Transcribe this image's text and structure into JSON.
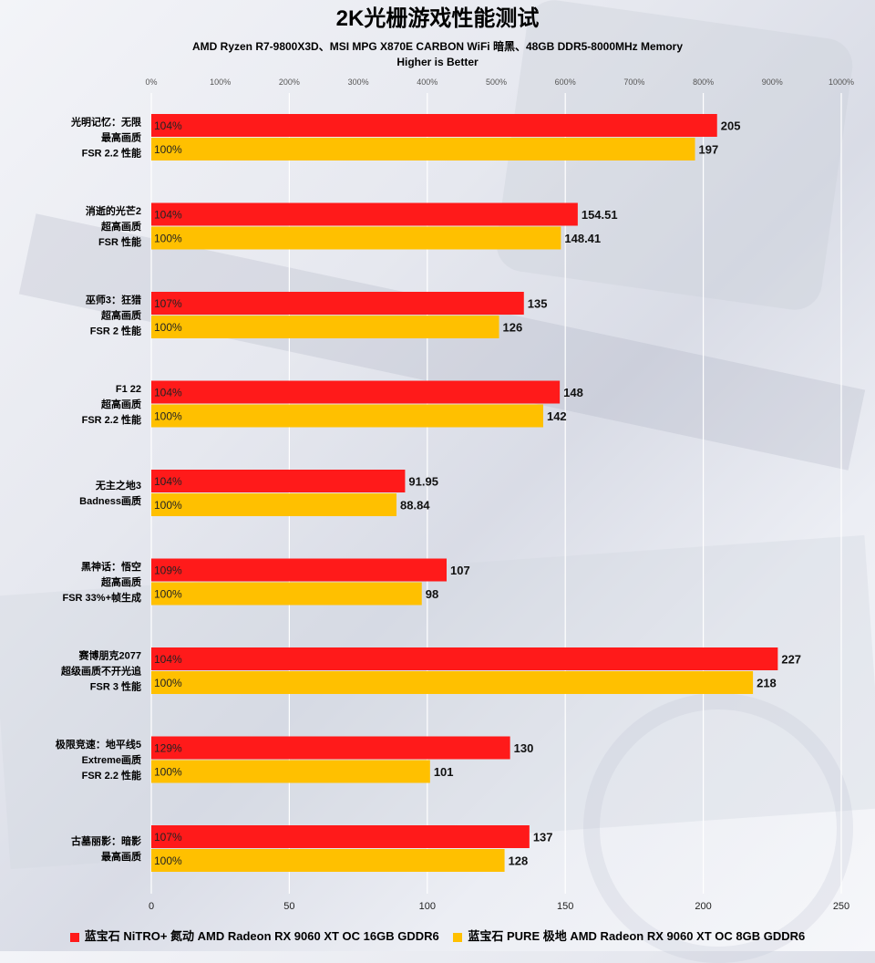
{
  "title": "2K光栅游戏性能测试",
  "subtitle": "AMD Ryzen R7-9800X3D、MSI MPG X870E CARBON WiFi 暗黑、48GB DDR5-8000MHz Memory",
  "note": "Higher is Better",
  "colors": {
    "series1": "#ff1a1a",
    "series2": "#ffc000",
    "grid": "#ffffff"
  },
  "chart_data": {
    "type": "bar",
    "orientation": "horizontal",
    "categories": [
      [
        "光明记忆：无限",
        "最高画质",
        "FSR 2.2 性能"
      ],
      [
        "消逝的光芒2",
        "超高画质",
        "FSR 性能"
      ],
      [
        "巫师3：狂猎",
        "超高画质",
        "FSR 2 性能"
      ],
      [
        "F1 22",
        "超高画质",
        "FSR 2.2 性能"
      ],
      [
        "无主之地3",
        "Badness画质"
      ],
      [
        "黑神话：悟空",
        "超高画质",
        "FSR 33%+帧生成"
      ],
      [
        "赛博朋克2077",
        "超级画质不开光追",
        "FSR 3 性能"
      ],
      [
        "极限竞速：地平线5",
        "Extreme画质",
        "FSR 2.2 性能"
      ],
      [
        "古墓丽影：暗影",
        "最高画质"
      ]
    ],
    "series": [
      {
        "name": "蓝宝石 NiTRO+ 氮动 AMD Radeon RX 9060 XT OC 16GB GDDR6",
        "values": [
          205,
          154.51,
          135,
          148,
          91.95,
          107,
          227,
          130,
          137
        ],
        "value_labels": [
          "205",
          "154.51",
          "135",
          "148",
          "91.95",
          "107",
          "227",
          "130",
          "137"
        ],
        "pct_labels": [
          "104%",
          "104%",
          "107%",
          "104%",
          "104%",
          "109%",
          "104%",
          "129%",
          "107%"
        ]
      },
      {
        "name": "蓝宝石 PURE 极地 AMD Radeon RX 9060 XT OC 8GB GDDR6",
        "values": [
          197,
          148.41,
          126,
          142,
          88.84,
          98,
          218,
          101,
          128
        ],
        "value_labels": [
          "197",
          "148.41",
          "126",
          "142",
          "88.84",
          "98",
          "218",
          "101",
          "128"
        ],
        "pct_labels": [
          "100%",
          "100%",
          "100%",
          "100%",
          "100%",
          "100%",
          "100%",
          "100%",
          "100%"
        ]
      }
    ],
    "x_axis": {
      "min": 0,
      "max": 250,
      "ticks": [
        0,
        50,
        100,
        150,
        200,
        250
      ]
    },
    "x2_axis": {
      "min": 0,
      "max": 1000,
      "ticks": [
        0,
        100,
        200,
        300,
        400,
        500,
        600,
        700,
        800,
        900,
        1000
      ],
      "tick_labels": [
        "0%",
        "100%",
        "200%",
        "300%",
        "400%",
        "500%",
        "600%",
        "700%",
        "800%",
        "900%",
        "1000%"
      ]
    },
    "grid": true,
    "legend_position": "bottom"
  }
}
